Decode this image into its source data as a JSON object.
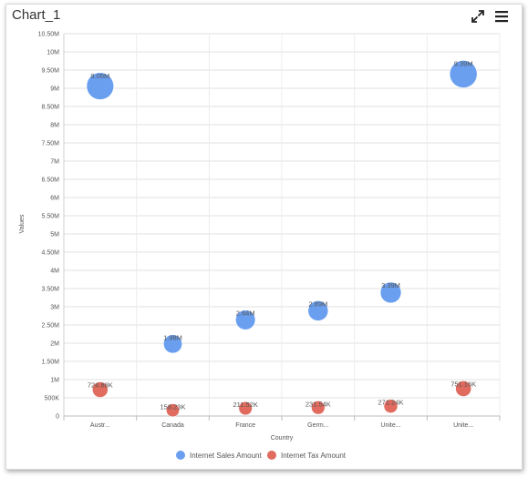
{
  "window": {
    "title": "Chart_1"
  },
  "toolbar": {
    "fullscreen_icon": "expand-icon",
    "menu_icon": "hamburger-menu-icon"
  },
  "chart_data": {
    "type": "scatter",
    "subtype": "bubble",
    "xlabel": "Country",
    "ylabel": "Values",
    "categories": [
      "Austr...",
      "Canada",
      "France",
      "Germ...",
      "Unite...",
      "Unite..."
    ],
    "ylim": [
      0,
      10500000
    ],
    "yticks": [
      "0",
      "500K",
      "1M",
      "1.50M",
      "2M",
      "2.50M",
      "3M",
      "3.50M",
      "4M",
      "4.50M",
      "5M",
      "5.50M",
      "6M",
      "6.50M",
      "7M",
      "7.50M",
      "8M",
      "8.50M",
      "9M",
      "9.50M",
      "10M",
      "10.50M"
    ],
    "grid": true,
    "legend_position": "bottom",
    "series": [
      {
        "name": "Internet Sales Amount",
        "color": "#6a9ff0",
        "values": [
          9060000,
          1980000,
          2640000,
          2890000,
          3390000,
          9390000
        ],
        "labels": [
          "9.06M",
          "1.98M",
          "2.64M",
          "2.89M",
          "3.39M",
          "9.39M"
        ]
      },
      {
        "name": "Internet Tax Amount",
        "color": "#e06b5e",
        "values": [
          724880,
          158230,
          211520,
          231540,
          271240,
          751160
        ],
        "labels": [
          "724.88K",
          "158.23K",
          "211.52K",
          "231.54K",
          "271.24K",
          "751.16K"
        ]
      }
    ]
  }
}
